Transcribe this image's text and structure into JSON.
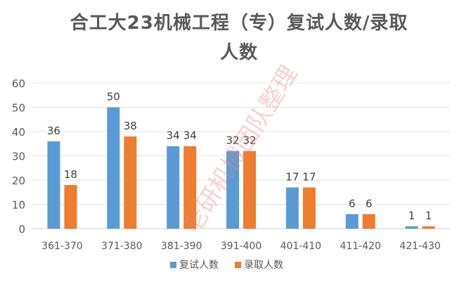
{
  "chart_data": {
    "type": "bar",
    "title": "合工大23机械工程（专）复试人数/录取人数",
    "title_lines": [
      "合工大23机械工程（专）复试人数/录取",
      "人数"
    ],
    "categories": [
      "361-370",
      "371-380",
      "381-390",
      "391-400",
      "401-410",
      "411-420",
      "421-430"
    ],
    "series": [
      {
        "name": "复试人数",
        "values": [
          36,
          50,
          34,
          32,
          17,
          6,
          1
        ],
        "color": "#5b9bd5"
      },
      {
        "name": "录取人数",
        "values": [
          18,
          38,
          34,
          32,
          17,
          6,
          1
        ],
        "color": "#ed7d31"
      }
    ],
    "yticks": [
      0,
      10,
      20,
      30,
      40,
      50,
      60
    ],
    "ylim": [
      0,
      60
    ],
    "xlabel": "",
    "ylabel": "",
    "grid": true,
    "legend_position": "bottom",
    "data_labels": true,
    "watermark": "老研机械团队整理"
  }
}
